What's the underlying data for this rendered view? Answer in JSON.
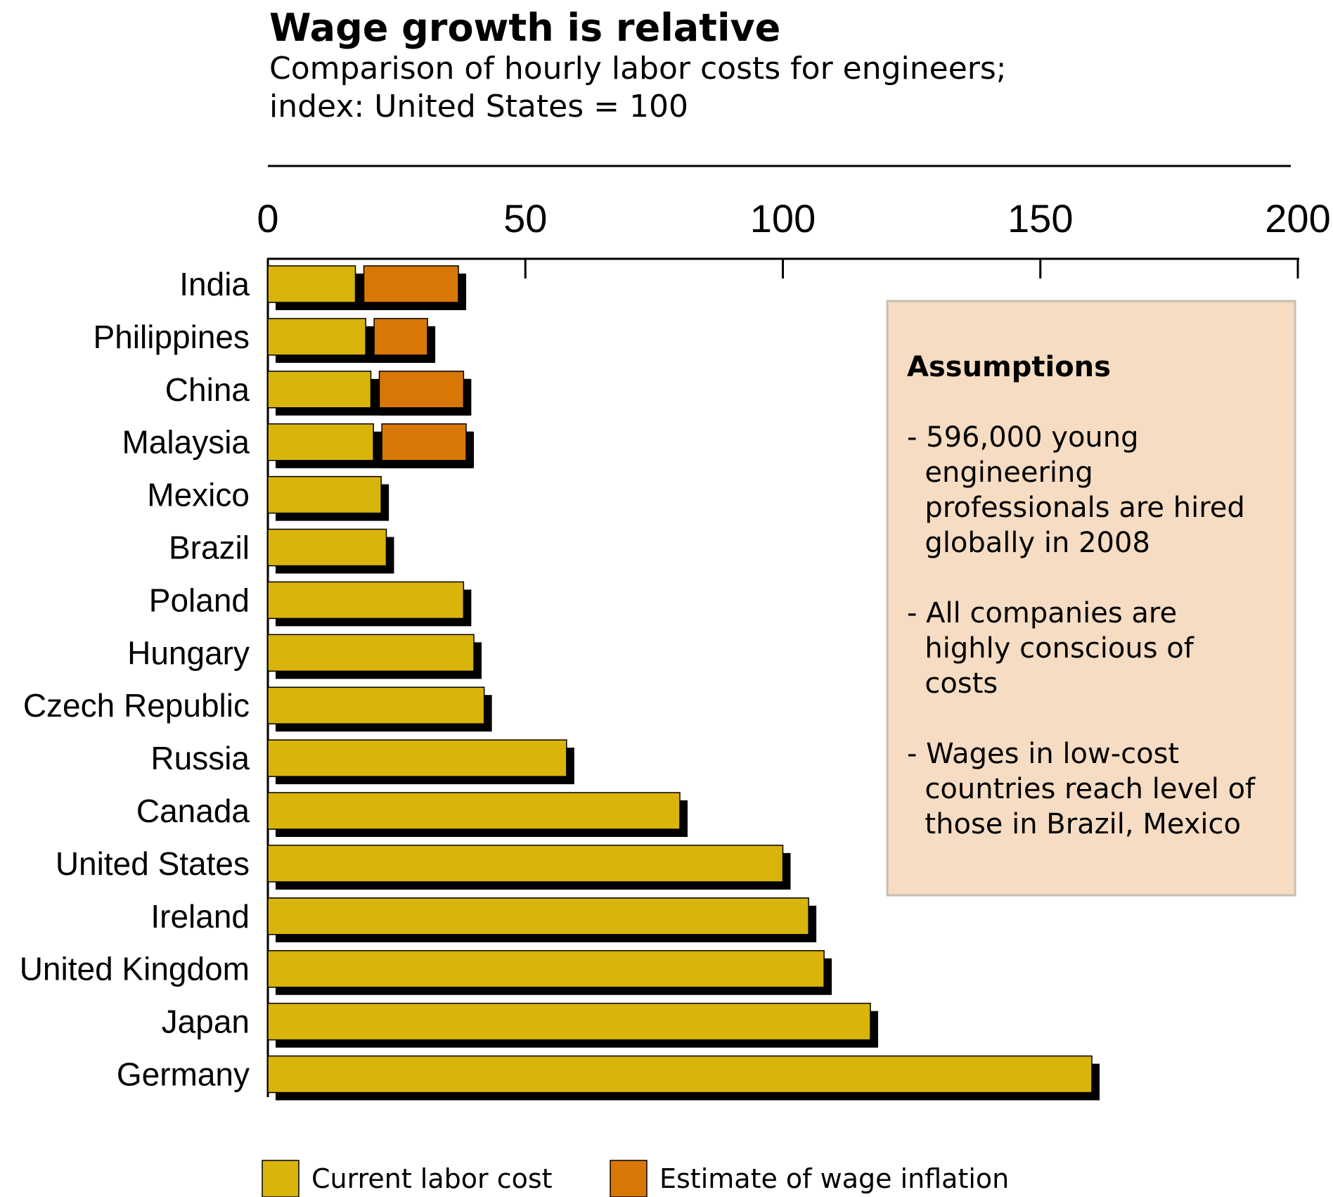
{
  "chart_data": {
    "type": "bar",
    "orientation": "horizontal",
    "stacked": true,
    "title": "Wage growth is relative",
    "subtitle_lines": [
      "Comparison of hourly labor costs for engineers;",
      "index: United States = 100"
    ],
    "xlim": [
      0,
      200
    ],
    "x_ticks": [
      "0",
      "50",
      "100",
      "150",
      "200"
    ],
    "categories": [
      "India",
      "Philippines",
      "China",
      "Malaysia",
      "Mexico",
      "Brazil",
      "Poland",
      "Hungary",
      "Czech Republic",
      "Russia",
      "Canada",
      "United States",
      "Ireland",
      "United Kingdom",
      "Japan",
      "Germany"
    ],
    "series": [
      {
        "name": "Current labor cost",
        "color": "#d9b40a",
        "values": [
          17,
          19,
          20,
          20.5,
          22,
          23,
          38,
          40,
          42,
          58,
          80,
          100,
          105,
          108,
          117,
          160
        ]
      },
      {
        "name": "Estimate of wage inflation",
        "color": "#d97706",
        "values": [
          20,
          12,
          18,
          18,
          0,
          0,
          0,
          0,
          0,
          0,
          0,
          0,
          0,
          0,
          0,
          0
        ]
      }
    ],
    "grid": false,
    "legend_position": "bottom"
  },
  "assumptions": {
    "title": "Assumptions",
    "items": [
      [
        "- 596,000 young",
        "  engineering",
        "  professionals are hired",
        "  globally in 2008"
      ],
      [
        "- All companies are",
        "  highly conscious of",
        "  costs"
      ],
      [
        "- Wages in low-cost",
        "  countries reach level of",
        "  those in Brazil, Mexico"
      ]
    ],
    "background": "#f5dcc2",
    "border": "#c8bdb4"
  },
  "colors": {
    "shadow": "#000000",
    "bar_outline": "#000000"
  }
}
